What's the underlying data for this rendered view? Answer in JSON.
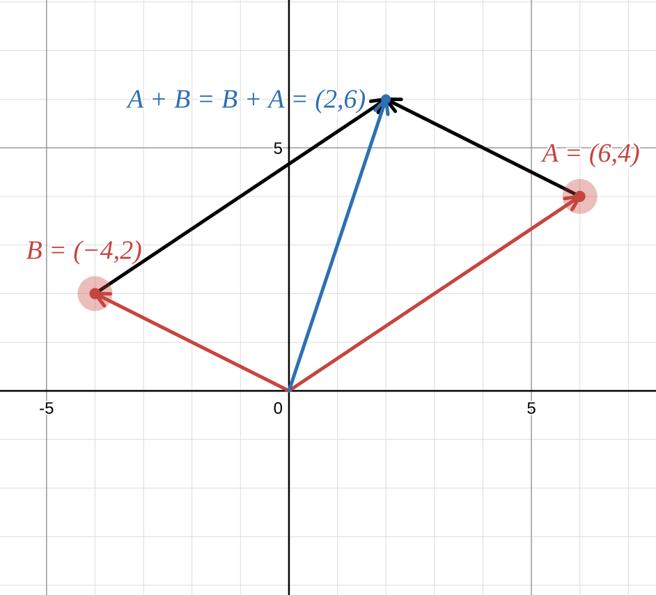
{
  "chart_data": {
    "type": "vector",
    "xlim": [
      -5.96,
      7.57
    ],
    "ylim": [
      -4.2,
      8.04
    ],
    "xticks": [
      -5,
      0,
      5
    ],
    "yticks": [
      5
    ],
    "grid": true,
    "minor_grid_step": 1,
    "points": [
      {
        "label": "A = (6,4)",
        "x": 6,
        "y": 4,
        "color": "#c74440"
      },
      {
        "label": "B = (−4,2)",
        "x": -4,
        "y": 2,
        "color": "#c74440"
      },
      {
        "label": "A + B = B + A = (2,6)",
        "x": 2,
        "y": 6,
        "color": "#2d70b3"
      }
    ]
  }
}
